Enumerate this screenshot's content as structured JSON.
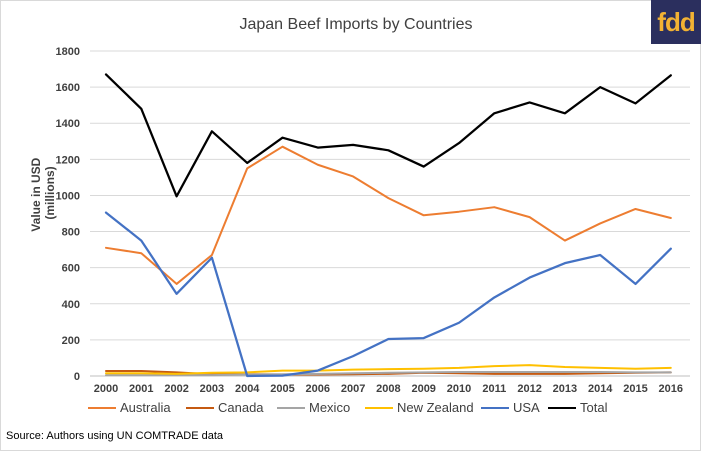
{
  "logo": {
    "text": "fdd"
  },
  "source_note": "Source: Authors using UN COMTRADE data",
  "chart_data": {
    "type": "line",
    "title": "Japan Beef Imports by Countries",
    "ylabel": "Value in USD (millions)",
    "xlabel": "",
    "ylim": [
      0,
      1800
    ],
    "ytick_step": 200,
    "grid": true,
    "legend_position": "bottom",
    "x": [
      "2000",
      "2001",
      "2002",
      "2003",
      "2004",
      "2005",
      "2006",
      "2007",
      "2008",
      "2009",
      "2010",
      "2011",
      "2012",
      "2013",
      "2014",
      "2015",
      "2016"
    ],
    "series": [
      {
        "name": "Australia",
        "color": "#ed7d31",
        "values": [
          710,
          680,
          510,
          670,
          1150,
          1270,
          1170,
          1105,
          985,
          890,
          910,
          935,
          880,
          750,
          845,
          925,
          875
        ]
      },
      {
        "name": "Canada",
        "color": "#c55a11",
        "values": [
          28,
          28,
          20,
          10,
          10,
          8,
          8,
          10,
          12,
          18,
          15,
          12,
          12,
          12,
          15,
          18,
          20
        ]
      },
      {
        "name": "Mexico",
        "color": "#a5a5a5",
        "values": [
          5,
          5,
          5,
          5,
          8,
          10,
          12,
          15,
          18,
          20,
          22,
          22,
          22,
          22,
          22,
          20,
          20
        ]
      },
      {
        "name": "New Zealand",
        "color": "#ffc000",
        "values": [
          15,
          15,
          12,
          18,
          20,
          30,
          30,
          35,
          38,
          40,
          45,
          55,
          60,
          50,
          45,
          40,
          45
        ]
      },
      {
        "name": "USA",
        "color": "#4472c4",
        "values": [
          905,
          750,
          455,
          655,
          0,
          2,
          30,
          110,
          205,
          210,
          295,
          435,
          545,
          625,
          670,
          510,
          705
        ]
      },
      {
        "name": "Total",
        "color": "#000000",
        "values": [
          1670,
          1480,
          995,
          1355,
          1180,
          1320,
          1265,
          1280,
          1250,
          1160,
          1290,
          1455,
          1515,
          1455,
          1600,
          1510,
          1665
        ]
      }
    ]
  }
}
